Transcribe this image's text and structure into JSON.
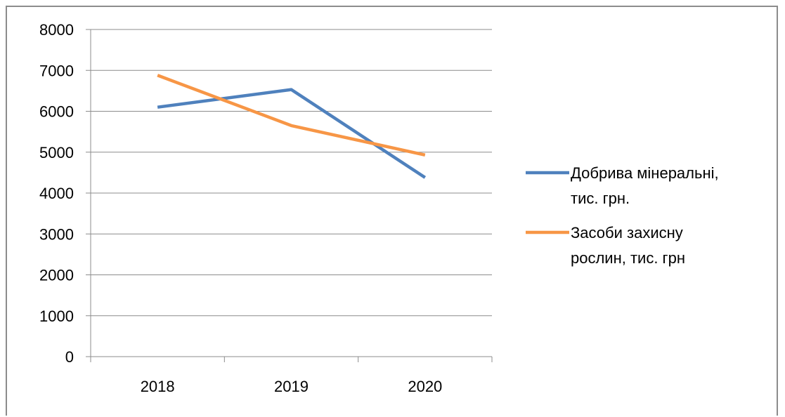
{
  "chart_data": {
    "type": "line",
    "title": "",
    "xlabel": "",
    "ylabel": "",
    "categories": [
      "2018",
      "2019",
      "2020"
    ],
    "ylim": [
      0,
      8000
    ],
    "yticks": [
      "0",
      "1000",
      "2000",
      "3000",
      "4000",
      "5000",
      "6000",
      "7000",
      "8000"
    ],
    "grid": true,
    "legend_position": "right",
    "series": [
      {
        "name": "Добрива мінеральні, тис. грн.",
        "name_lines": [
          "Добрива мінеральні,",
          "тис. грн."
        ],
        "color": "#4f81bd",
        "values": [
          6100,
          6530,
          4380
        ]
      },
      {
        "name": "Засоби захисну рослин, тис. грн",
        "name_lines": [
          "Засоби захисну",
          "рослин, тис. грн"
        ],
        "color": "#f79646",
        "values": [
          6880,
          5650,
          4930
        ]
      }
    ]
  }
}
